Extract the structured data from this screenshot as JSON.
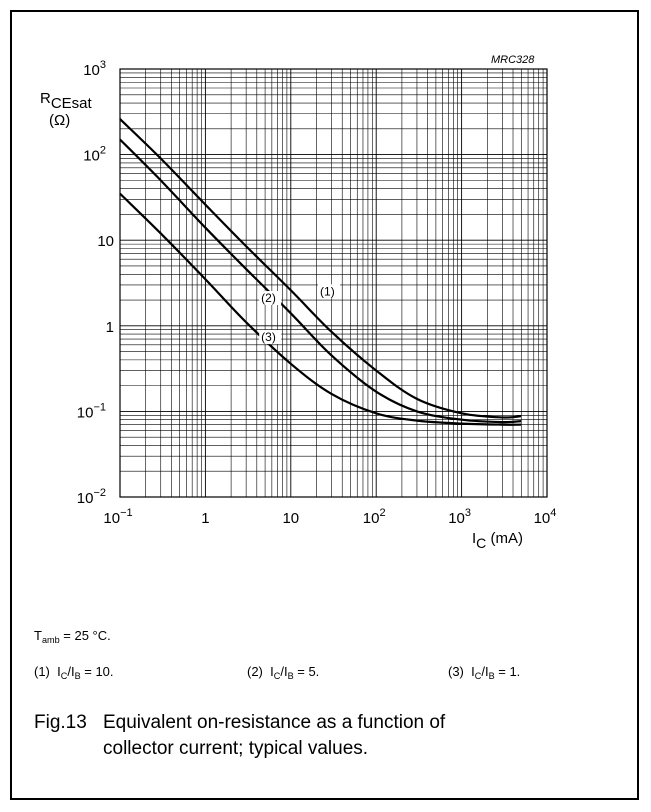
{
  "figure": {
    "code": "MRC328",
    "conditions": {
      "symbol": "T",
      "sub": "amb",
      "rest": " = 25 °C."
    },
    "legend_notes": [
      {
        "num": "(1)",
        "a": "I",
        "asub": "C",
        "slash": "/I",
        "bsub": "B",
        "rest": " = 10."
      },
      {
        "num": "(2)",
        "a": "I",
        "asub": "C",
        "slash": "/I",
        "bsub": "B",
        "rest": " = 5."
      },
      {
        "num": "(3)",
        "a": "I",
        "asub": "C",
        "slash": "/I",
        "bsub": "B",
        "rest": " = 1."
      }
    ],
    "caption": {
      "label": "Fig.13",
      "line1": "Equivalent on-resistance as a function of",
      "line2": "collector current; typical values."
    }
  },
  "chart_data": {
    "type": "line",
    "title": "",
    "x_scale": "log",
    "y_scale": "log",
    "xlim": [
      0.1,
      10000
    ],
    "ylim": [
      0.01,
      1000
    ],
    "xlabel": {
      "symbol": "I",
      "sub": "C",
      "unit": " (mA)"
    },
    "ylabel": {
      "symbol": "R",
      "sub": "CEsat",
      "unit": "(Ω)"
    },
    "x_ticks": [
      {
        "value": 0.1,
        "base": "10",
        "exp": "−1"
      },
      {
        "value": 1,
        "base": "1",
        "exp": ""
      },
      {
        "value": 10,
        "base": "10",
        "exp": ""
      },
      {
        "value": 100,
        "base": "10",
        "exp": "2"
      },
      {
        "value": 1000,
        "base": "10",
        "exp": "3"
      },
      {
        "value": 10000,
        "base": "10",
        "exp": "4"
      }
    ],
    "y_ticks": [
      {
        "value": 0.01,
        "base": "10",
        "exp": "−2"
      },
      {
        "value": 0.1,
        "base": "10",
        "exp": "−1"
      },
      {
        "value": 1,
        "base": "1",
        "exp": ""
      },
      {
        "value": 10,
        "base": "10",
        "exp": ""
      },
      {
        "value": 100,
        "base": "10",
        "exp": "2"
      },
      {
        "value": 1000,
        "base": "10",
        "exp": "3"
      }
    ],
    "grid": true,
    "series": [
      {
        "name": "(1)",
        "label_at": {
          "x": 22,
          "y": 2.4
        },
        "x": [
          0.1,
          0.3,
          1,
          3,
          10,
          30,
          100,
          300,
          1000,
          3000,
          5000
        ],
        "y": [
          260,
          90,
          26,
          8.5,
          2.6,
          0.85,
          0.3,
          0.14,
          0.095,
          0.085,
          0.088
        ]
      },
      {
        "name": "(2)",
        "label_at": {
          "x": 4.5,
          "y": 2.0
        },
        "x": [
          0.1,
          0.3,
          1,
          3,
          10,
          30,
          100,
          300,
          1000,
          3000,
          5000
        ],
        "y": [
          150,
          50,
          14,
          4.6,
          1.4,
          0.45,
          0.17,
          0.1,
          0.08,
          0.075,
          0.077
        ]
      },
      {
        "name": "(3)",
        "label_at": {
          "x": 4.5,
          "y": 0.7
        },
        "x": [
          0.1,
          0.3,
          1,
          3,
          10,
          30,
          100,
          300,
          1000,
          3000,
          5000
        ],
        "y": [
          35,
          12,
          3.5,
          1.1,
          0.36,
          0.16,
          0.095,
          0.078,
          0.072,
          0.07,
          0.07
        ]
      }
    ]
  }
}
